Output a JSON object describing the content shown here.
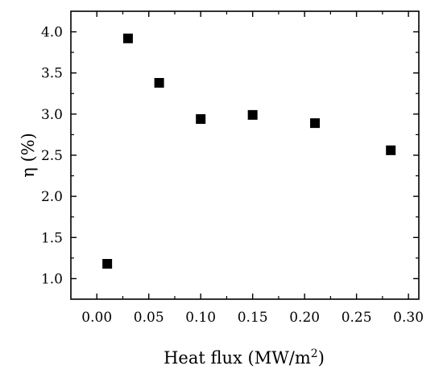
{
  "chart_data": {
    "type": "scatter",
    "title": "",
    "xlabel": "Heat flux (MW/m",
    "xlabel_sup": "2",
    "xlabel_end": ")",
    "ylabel": "η (%)",
    "xlim": [
      -0.025,
      0.31
    ],
    "ylim": [
      0.75,
      4.25
    ],
    "x_ticks": [
      0.0,
      0.05,
      0.1,
      0.15,
      0.2,
      0.25,
      0.3
    ],
    "x_tick_labels": [
      "0.00",
      "0.05",
      "0.10",
      "0.15",
      "0.20",
      "0.25",
      "0.30"
    ],
    "y_ticks": [
      1.0,
      1.5,
      2.0,
      2.5,
      3.0,
      3.5,
      4.0
    ],
    "y_tick_labels": [
      "1.0",
      "1.5",
      "2.0",
      "2.5",
      "3.0",
      "3.5",
      "4.0"
    ],
    "grid": false,
    "marker": "square",
    "marker_color": "#000000",
    "series": [
      {
        "x": [
          0.01,
          0.03,
          0.06,
          0.1,
          0.15,
          0.21,
          0.283
        ],
        "y": [
          1.18,
          3.92,
          3.38,
          2.94,
          2.99,
          2.89,
          2.56
        ]
      }
    ]
  }
}
